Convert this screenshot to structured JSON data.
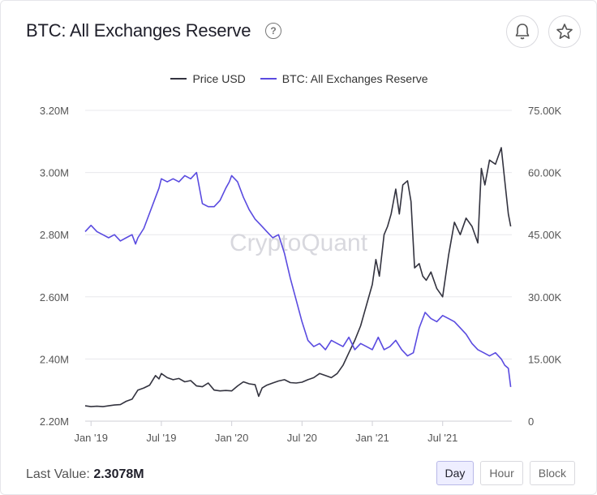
{
  "header": {
    "title": "BTC: All Exchanges Reserve",
    "help_glyph": "?",
    "alert_icon": "bell-icon",
    "favorite_icon": "star-icon"
  },
  "legend": [
    {
      "label": "Price USD",
      "color": "#33333f"
    },
    {
      "label": "BTC: All Exchanges Reserve",
      "color": "#5a4be0"
    }
  ],
  "watermark": "CryptoQuant",
  "footer": {
    "last_value_label": "Last Value:",
    "last_value": "2.3078M"
  },
  "tabs": [
    {
      "label": "Day",
      "active": true
    },
    {
      "label": "Hour",
      "active": false
    },
    {
      "label": "Block",
      "active": false
    }
  ],
  "chart_data": {
    "type": "line",
    "x_ticks": [
      "Jan '19",
      "Jul '19",
      "Jan '20",
      "Jul '20",
      "Jan '21",
      "Jul '21"
    ],
    "x_tick_positions": [
      0,
      6,
      12,
      18,
      24,
      30
    ],
    "x_range": [
      -0.5,
      35.9
    ],
    "left_axis": {
      "ticks": [
        "2.20M",
        "2.40M",
        "2.60M",
        "2.80M",
        "3.00M",
        "3.20M"
      ],
      "tick_values": [
        2.2,
        2.4,
        2.6,
        2.8,
        3.0,
        3.2
      ],
      "ylim": [
        2.2,
        3.2
      ]
    },
    "right_axis": {
      "ticks": [
        "0",
        "15.00K",
        "30.00K",
        "45.00K",
        "60.00K",
        "75.00K"
      ],
      "tick_values": [
        0,
        15000,
        30000,
        45000,
        60000,
        75000
      ],
      "ylim": [
        0,
        75000
      ]
    },
    "grid": true,
    "legend_position": "top-center",
    "series": [
      {
        "name": "Price USD",
        "axis": "right",
        "color": "#33333f",
        "x": [
          -0.5,
          0,
          0.5,
          1,
          1.5,
          2,
          2.5,
          3,
          3.5,
          4,
          4.5,
          5,
          5.5,
          5.8,
          6,
          6.5,
          7,
          7.5,
          8,
          8.5,
          9,
          9.5,
          10,
          10.5,
          11,
          11.5,
          12,
          12.5,
          13,
          13.5,
          14,
          14.3,
          14.6,
          15,
          15.5,
          16,
          16.5,
          17,
          17.5,
          18,
          18.5,
          19,
          19.5,
          20,
          20.5,
          21,
          21.5,
          22,
          22.5,
          23,
          23.5,
          24,
          24.3,
          24.6,
          25,
          25.3,
          25.6,
          26,
          26.3,
          26.6,
          27,
          27.3,
          27.6,
          28,
          28.3,
          28.6,
          29,
          29.5,
          30,
          30.5,
          31,
          31.5,
          32,
          32.5,
          33,
          33.3,
          33.6,
          34,
          34.5,
          35,
          35.3,
          35.6,
          35.8
        ],
        "y": [
          3700,
          3500,
          3600,
          3500,
          3700,
          3900,
          4000,
          4800,
          5300,
          7500,
          8000,
          8700,
          11000,
          10200,
          11500,
          10500,
          10000,
          10300,
          9500,
          9800,
          8500,
          8300,
          9200,
          7500,
          7300,
          7400,
          7300,
          8500,
          9500,
          9000,
          8800,
          6000,
          8000,
          8700,
          9200,
          9700,
          10000,
          9300,
          9200,
          9400,
          10000,
          10500,
          11500,
          11000,
          10500,
          11500,
          13500,
          16500,
          19500,
          23000,
          28000,
          33000,
          39000,
          35000,
          45000,
          47000,
          50000,
          56000,
          50000,
          57000,
          58000,
          53000,
          37000,
          38000,
          35000,
          34000,
          36000,
          32000,
          30000,
          40000,
          48000,
          45000,
          49000,
          47000,
          43000,
          61000,
          57000,
          63000,
          62000,
          66000,
          58000,
          50000,
          47000
        ]
      },
      {
        "name": "BTC: All Exchanges Reserve",
        "axis": "left",
        "color": "#5a4be0",
        "x": [
          -0.5,
          0,
          0.5,
          1,
          1.5,
          2,
          2.5,
          3,
          3.5,
          3.8,
          4,
          4.5,
          5,
          5.5,
          5.8,
          6,
          6.5,
          7,
          7.5,
          8,
          8.5,
          9,
          9.5,
          10,
          10.5,
          11,
          11.5,
          11.8,
          12,
          12.5,
          13,
          13.5,
          14,
          14.5,
          15,
          15.5,
          16,
          16.5,
          17,
          17.5,
          18,
          18.5,
          19,
          19.5,
          20,
          20.5,
          21,
          21.5,
          22,
          22.5,
          23,
          23.5,
          24,
          24.5,
          25,
          25.5,
          26,
          26.5,
          27,
          27.5,
          28,
          28.5,
          29,
          29.5,
          30,
          30.5,
          31,
          31.5,
          32,
          32.5,
          33,
          33.5,
          34,
          34.5,
          35,
          35.3,
          35.6,
          35.8
        ],
        "y": [
          2.81,
          2.83,
          2.81,
          2.8,
          2.79,
          2.8,
          2.78,
          2.79,
          2.8,
          2.77,
          2.79,
          2.82,
          2.87,
          2.92,
          2.95,
          2.98,
          2.97,
          2.98,
          2.97,
          2.99,
          2.98,
          3.0,
          2.9,
          2.89,
          2.89,
          2.91,
          2.95,
          2.97,
          2.99,
          2.97,
          2.92,
          2.88,
          2.85,
          2.83,
          2.81,
          2.79,
          2.8,
          2.74,
          2.66,
          2.59,
          2.52,
          2.46,
          2.44,
          2.45,
          2.43,
          2.46,
          2.45,
          2.44,
          2.47,
          2.43,
          2.45,
          2.44,
          2.43,
          2.47,
          2.43,
          2.44,
          2.46,
          2.43,
          2.41,
          2.42,
          2.5,
          2.55,
          2.53,
          2.52,
          2.54,
          2.53,
          2.52,
          2.5,
          2.48,
          2.45,
          2.43,
          2.42,
          2.41,
          2.42,
          2.4,
          2.38,
          2.37,
          2.31
        ]
      }
    ]
  }
}
